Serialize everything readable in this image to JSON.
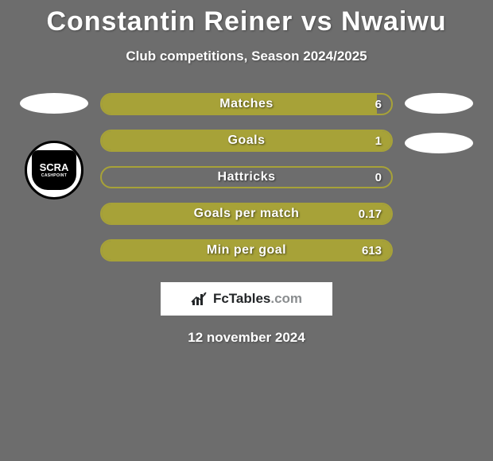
{
  "background_color": "#6d6d6d",
  "text_color": "#ffffff",
  "title": "Constantin Reiner vs Nwaiwu",
  "subtitle": "Club competitions, Season 2024/2025",
  "date": "12 november 2024",
  "title_fontsize": 34,
  "subtitle_fontsize": 17,
  "stat_bar": {
    "border_color": "#a7a238",
    "fill_color": "#a7a238",
    "empty_color": "transparent",
    "height": 28,
    "radius": 14
  },
  "stats": [
    {
      "label": "Matches",
      "value": "6",
      "fill_pct": 95
    },
    {
      "label": "Goals",
      "value": "1",
      "fill_pct": 100
    },
    {
      "label": "Hattricks",
      "value": "0",
      "fill_pct": 0
    },
    {
      "label": "Goals per match",
      "value": "0.17",
      "fill_pct": 100
    },
    {
      "label": "Min per goal",
      "value": "613",
      "fill_pct": 100
    }
  ],
  "left_side": {
    "ellipse_color": "#ffffff",
    "logo": {
      "main": "SCRA",
      "sub": "CASHPOINT"
    }
  },
  "right_side": {
    "ellipse_color": "#ffffff",
    "ellipse_count": 2
  },
  "footer": {
    "brand_strong": "FcTables",
    "brand_muted": ".com",
    "box_bg": "#ffffff"
  }
}
